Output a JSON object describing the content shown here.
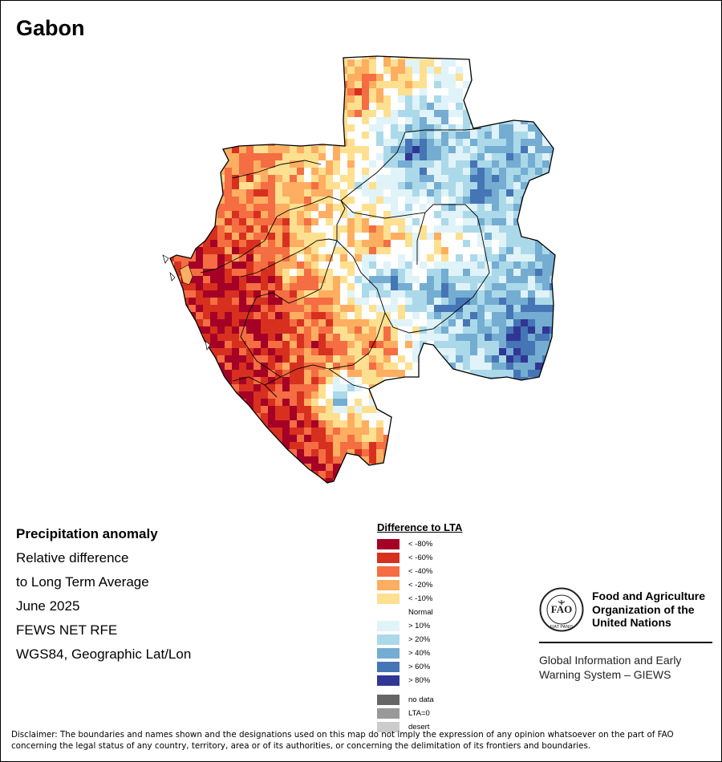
{
  "map": {
    "title": "Gabon",
    "info": {
      "heading": "Precipitation anomaly",
      "line1": "Relative difference",
      "line2": "to Long Term Average",
      "period": "June 2025",
      "source": "FEWS NET RFE",
      "projection": "WGS84, Geographic Lat/Lon"
    },
    "legend": {
      "title": "Difference to LTA",
      "classes": [
        {
          "label": "< -80%",
          "color": "#a50026"
        },
        {
          "label": "< -60%",
          "color": "#d7301f"
        },
        {
          "label": "< -40%",
          "color": "#f46d43"
        },
        {
          "label": "< -20%",
          "color": "#fdae61"
        },
        {
          "label": "< -10%",
          "color": "#fee090"
        },
        {
          "label": "Normal",
          "color": "#ffffff"
        },
        {
          "label": "> 10%",
          "color": "#e0f3f8"
        },
        {
          "label": "> 20%",
          "color": "#abd9e9"
        },
        {
          "label": "> 40%",
          "color": "#74add1"
        },
        {
          "label": "> 60%",
          "color": "#4575b4"
        },
        {
          "label": "> 80%",
          "color": "#313695"
        }
      ],
      "extra": [
        {
          "label": "no data",
          "color": "#666666"
        },
        {
          "label": "LTA=0",
          "color": "#999999"
        },
        {
          "label": "desert",
          "color": "#cccccc"
        }
      ]
    },
    "fao": {
      "name_line1": "Food and Agriculture",
      "name_line2": "Organization of the",
      "name_line3": "United Nations",
      "emblem_text": "FAO",
      "emblem_motto": "FIAT PANIS",
      "giews_line1": "Global Information and Early",
      "giews_line2": "Warning System – GIEWS"
    },
    "disclaimer": "Disclaimer: The boundaries and names shown and the designations used on this map do not imply the expression of any opinion whatsoever on the part of FAO concerning the legal status of any country, territory, area or of its authorities, or concerning the delimitation of its frontiers and boundaries."
  }
}
